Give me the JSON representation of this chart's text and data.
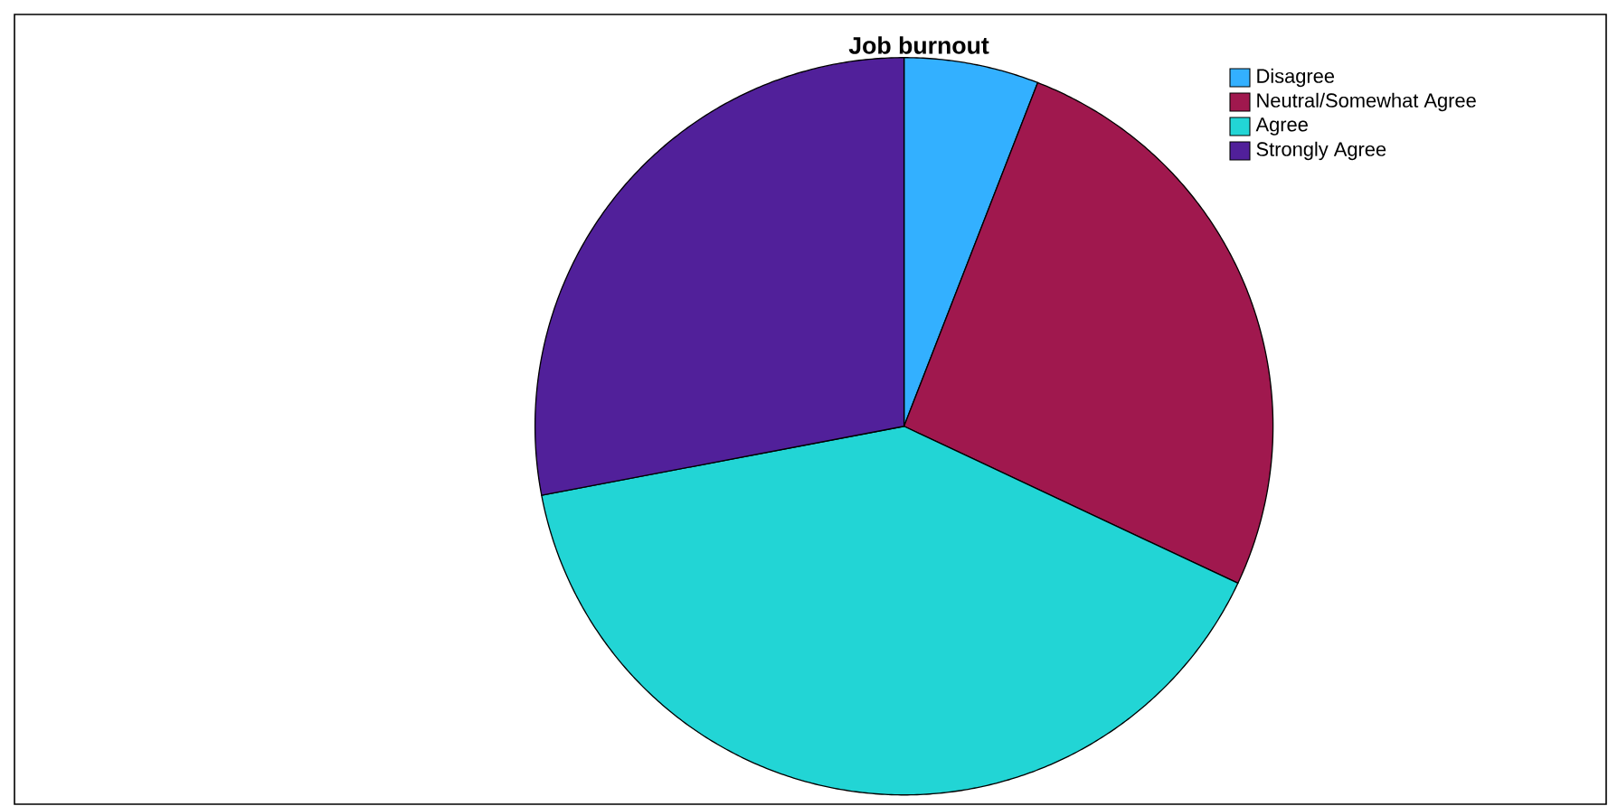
{
  "chart_data": {
    "type": "pie",
    "title": "Job burnout",
    "categories": [
      "Disagree",
      "Neutral/Somewhat Agree",
      "Agree",
      "Strongly Agree"
    ],
    "values": [
      5.9,
      26.1,
      40.0,
      28.0
    ],
    "colors": [
      "#33b0ff",
      "#a0184e",
      "#22d5d5",
      "#51209a"
    ],
    "legend": "top right"
  }
}
